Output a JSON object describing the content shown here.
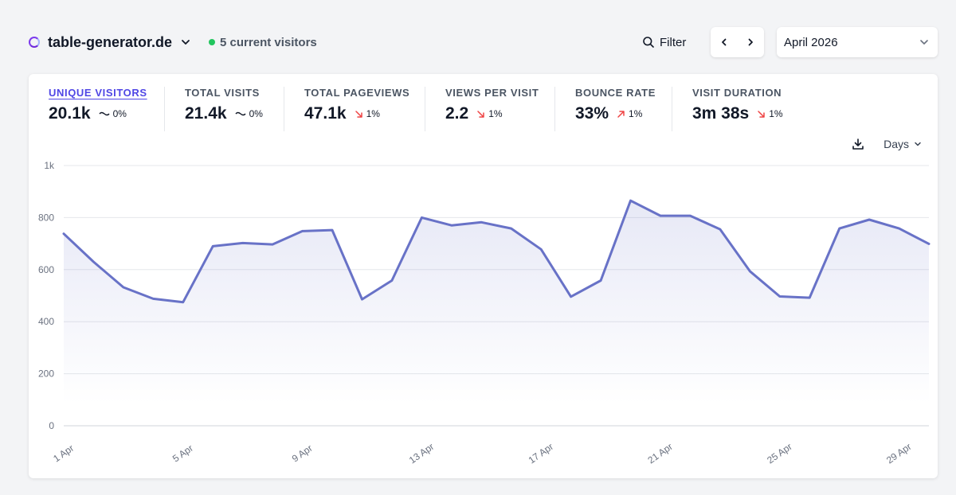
{
  "header": {
    "site_name": "table-generator.de",
    "current_visitors": "5 current visitors",
    "filter_label": "Filter",
    "period_label": "April 2026"
  },
  "metrics": [
    {
      "label": "UNIQUE VISITORS",
      "value": "20.1k",
      "change": "0%",
      "trend": "flat",
      "active": true
    },
    {
      "label": "TOTAL VISITS",
      "value": "21.4k",
      "change": "0%",
      "trend": "flat",
      "active": false
    },
    {
      "label": "TOTAL PAGEVIEWS",
      "value": "47.1k",
      "change": "1%",
      "trend": "down",
      "active": false
    },
    {
      "label": "VIEWS PER VISIT",
      "value": "2.2",
      "change": "1%",
      "trend": "down",
      "active": false
    },
    {
      "label": "BOUNCE RATE",
      "value": "33%",
      "change": "1%",
      "trend": "up",
      "active": false
    },
    {
      "label": "VISIT DURATION",
      "value": "3m 38s",
      "change": "1%",
      "trend": "down",
      "active": false
    }
  ],
  "tools": {
    "interval_label": "Days"
  },
  "colors": {
    "line": "#6872c7",
    "trend_down": "#ef4444",
    "trend_up": "#ef4444",
    "live_dot": "#22c55e",
    "active_metric": "#4f46e5"
  },
  "icons": [
    "site-logo-icon",
    "chevron-down-icon",
    "search-icon",
    "chevron-left-icon",
    "chevron-right-icon",
    "download-icon",
    "trend-flat-icon",
    "arrow-down-right-icon",
    "arrow-up-right-icon"
  ],
  "chart_data": {
    "type": "area",
    "x": [
      "1 Apr",
      "2 Apr",
      "3 Apr",
      "4 Apr",
      "5 Apr",
      "6 Apr",
      "7 Apr",
      "8 Apr",
      "9 Apr",
      "10 Apr",
      "11 Apr",
      "12 Apr",
      "13 Apr",
      "14 Apr",
      "15 Apr",
      "16 Apr",
      "17 Apr",
      "18 Apr",
      "19 Apr",
      "20 Apr",
      "21 Apr",
      "22 Apr",
      "23 Apr",
      "24 Apr",
      "25 Apr",
      "26 Apr",
      "27 Apr",
      "28 Apr",
      "29 Apr",
      "30 Apr"
    ],
    "series": [
      {
        "values": [
          738,
          630,
          532,
          488,
          475,
          690,
          702,
          697,
          748,
          752,
          486,
          558,
          800,
          770,
          782,
          758,
          678,
          496,
          558,
          865,
          807,
          807,
          755,
          594,
          497,
          492,
          758,
          792,
          758,
          699
        ]
      }
    ],
    "tick_labels_x": [
      "1 Apr",
      "5 Apr",
      "9 Apr",
      "13 Apr",
      "17 Apr",
      "21 Apr",
      "25 Apr",
      "29 Apr"
    ],
    "tick_labels_y": [
      "0",
      "200",
      "400",
      "600",
      "800",
      "1k"
    ],
    "ylim": [
      0,
      1000
    ],
    "grid": true,
    "legend": "none"
  }
}
